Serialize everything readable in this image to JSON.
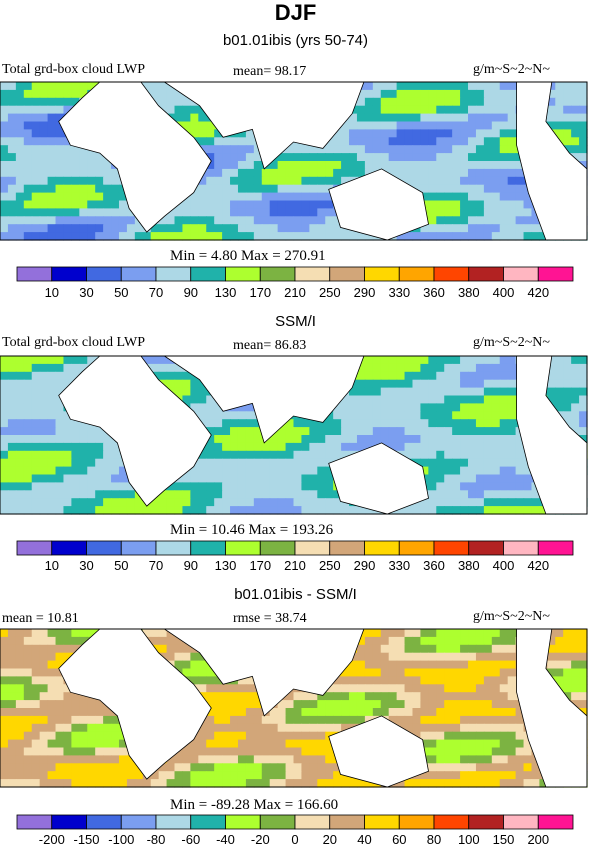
{
  "page": {
    "title": "DJF"
  },
  "colors": {
    "levels": [
      "#9370db",
      "#0000cd",
      "#4169e1",
      "#7b9ef0",
      "#add8e6",
      "#20b2aa",
      "#adff2f",
      "#7cb342",
      "#f5deb3",
      "#d2a679",
      "#ffd700",
      "#ffa500",
      "#ff4500",
      "#b22222",
      "#ffb6c1",
      "#ff1493"
    ]
  },
  "chart_data": [
    {
      "type": "heatmap",
      "title": "b01.01ibis (yrs 50-74)",
      "left_label": "Total grd-box cloud LWP",
      "center_label": "mean=  98.17",
      "right_label": "g/m~S~2~N~",
      "stats_label": "Min =   4.80 Max = 270.91",
      "min": 4.8,
      "max": 270.91,
      "mean": 98.17,
      "colorbar_ticks": [
        "10",
        "30",
        "50",
        "70",
        "90",
        "130",
        "170",
        "210",
        "250",
        "290",
        "330",
        "360",
        "380",
        "400",
        "420"
      ],
      "dominant_levels": [
        2,
        3,
        4,
        5,
        6
      ]
    },
    {
      "type": "heatmap",
      "title": "SSM/I",
      "left_label": "Total grd-box cloud LWP",
      "center_label": "mean=  86.83",
      "right_label": "g/m~S~2~N~",
      "stats_label": "Min =  10.46 Max = 193.26",
      "min": 10.46,
      "max": 193.26,
      "mean": 86.83,
      "colorbar_ticks": [
        "10",
        "30",
        "50",
        "70",
        "90",
        "130",
        "170",
        "210",
        "250",
        "290",
        "330",
        "360",
        "380",
        "400",
        "420"
      ],
      "dominant_levels": [
        3,
        4,
        5,
        6
      ]
    },
    {
      "type": "heatmap",
      "title": "b01.01ibis - SSM/I",
      "left_label": "mean =  10.81",
      "center_label": "rmse =  38.74",
      "right_label": "g/m~S~2~N~",
      "stats_label": "Min = -89.28 Max = 166.60",
      "min": -89.28,
      "max": 166.6,
      "mean": 10.81,
      "rmse": 38.74,
      "colorbar_ticks": [
        "-200",
        "-150",
        "-100",
        "-80",
        "-60",
        "-40",
        "-20",
        "0",
        "20",
        "40",
        "60",
        "80",
        "100",
        "150",
        "200"
      ],
      "dominant_levels": [
        6,
        7,
        8,
        9,
        10,
        11
      ]
    }
  ]
}
